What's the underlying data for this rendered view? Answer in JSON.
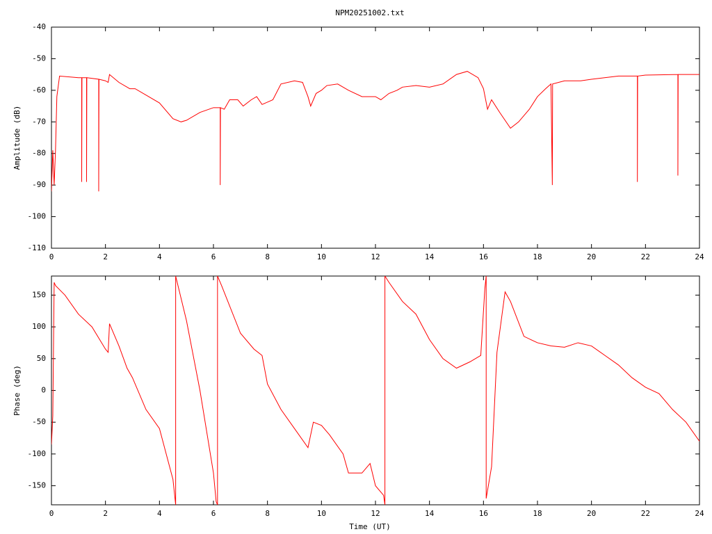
{
  "chart_data": [
    {
      "type": "line",
      "title": "NPM20251002.txt",
      "y_label": "Amplitude (dB)",
      "color": "#ff0000",
      "xlim": [
        0,
        24
      ],
      "xticks": [
        0,
        2,
        4,
        6,
        8,
        10,
        12,
        14,
        16,
        18,
        20,
        22,
        24
      ],
      "ylim": [
        -110,
        -40
      ],
      "yticks": [
        -110,
        -100,
        -90,
        -80,
        -70,
        -60,
        -50,
        -40
      ],
      "x": [
        0,
        0.05,
        0.1,
        0.15,
        0.2,
        0.3,
        1,
        1.12,
        1.12,
        1.13,
        1.3,
        1.3,
        1.31,
        1.75,
        1.75,
        1.76,
        2,
        2.1,
        2.15,
        2.5,
        2.9,
        3.1,
        3.5,
        4,
        4.5,
        4.8,
        5,
        5.5,
        6,
        6.25,
        6.25,
        6.26,
        6.4,
        6.6,
        6.9,
        7.1,
        7.4,
        7.6,
        7.8,
        8.2,
        8.5,
        9,
        9.3,
        9.5,
        9.6,
        9.8,
        10,
        10.2,
        10.6,
        11,
        11.5,
        12,
        12.2,
        12.5,
        12.8,
        13,
        13.5,
        14,
        14.5,
        15,
        15.4,
        15.8,
        16,
        16.15,
        16.3,
        16.6,
        17,
        17.3,
        17.7,
        18,
        18.3,
        18.5,
        18.55,
        18.56,
        19,
        19.6,
        20,
        21,
        21.7,
        21.7,
        21.71,
        22,
        23.2,
        23.2,
        23.21,
        24
      ],
      "values": [
        -92,
        -79,
        -90,
        -79,
        -62,
        -55.5,
        -56,
        -56,
        -89,
        -56,
        -56,
        -89,
        -56,
        -56.5,
        -92,
        -56.5,
        -57,
        -57.5,
        -55,
        -57.5,
        -59.5,
        -59.5,
        -61.5,
        -64,
        -69,
        -70,
        -69.5,
        -67,
        -65.5,
        -65.5,
        -90,
        -65.5,
        -66,
        -63,
        -63,
        -65,
        -63,
        -62,
        -64.5,
        -63,
        -58,
        -57,
        -57.5,
        -62,
        -65,
        -61,
        -60,
        -58.5,
        -58,
        -60,
        -62,
        -62,
        -63,
        -61,
        -60,
        -59,
        -58.5,
        -59,
        -58,
        -55,
        -54,
        -56,
        -59.5,
        -66,
        -63,
        -67,
        -72,
        -70,
        -66,
        -62,
        -59.5,
        -58,
        -90,
        -58,
        -57,
        -57,
        -56.5,
        -55.5,
        -55.5,
        -89,
        -55.5,
        -55.2,
        -55,
        -87,
        -55,
        -55
      ]
    },
    {
      "type": "line",
      "x_label": "Time (UT)",
      "y_label": "Phase (deg)",
      "color": "#ff0000",
      "xlim": [
        0,
        24
      ],
      "xticks": [
        0,
        2,
        4,
        6,
        8,
        10,
        12,
        14,
        16,
        18,
        20,
        22,
        24
      ],
      "ylim": [
        -180,
        180
      ],
      "yticks": [
        -150,
        -100,
        -50,
        0,
        50,
        100,
        150
      ],
      "x": [
        0,
        0.05,
        0.1,
        0.15,
        0.5,
        1,
        1.5,
        2,
        2.1,
        2.15,
        2.5,
        2.8,
        3,
        3.5,
        4,
        4.5,
        4.6,
        4.6,
        5,
        5.5,
        6,
        6.1,
        6.15,
        6.15,
        6.3,
        7,
        7.5,
        7.8,
        8,
        8.5,
        9,
        9.5,
        9.7,
        10,
        10.3,
        10.8,
        11,
        11.5,
        11.8,
        12,
        12.3,
        12.35,
        12.35,
        12.5,
        13,
        13.5,
        14,
        14.5,
        15,
        15.5,
        15.9,
        16.05,
        16.1,
        16.1,
        16.3,
        16.5,
        16.8,
        17,
        17.5,
        18,
        18.5,
        19,
        19.5,
        20,
        20.5,
        21,
        21.5,
        22,
        22.5,
        23,
        23.5,
        24
      ],
      "values": [
        -85,
        -40,
        170,
        165,
        150,
        120,
        100,
        65,
        60,
        105,
        70,
        35,
        20,
        -30,
        -60,
        -140,
        -180,
        180,
        110,
        0,
        -130,
        -175,
        -180,
        180,
        165,
        90,
        65,
        55,
        10,
        -30,
        -60,
        -90,
        -50,
        -55,
        -70,
        -100,
        -130,
        -130,
        -115,
        -150,
        -165,
        -180,
        180,
        170,
        140,
        120,
        80,
        50,
        35,
        45,
        55,
        160,
        180,
        -170,
        -120,
        60,
        155,
        140,
        85,
        75,
        70,
        68,
        75,
        70,
        55,
        40,
        20,
        5,
        -5,
        -30,
        -50,
        -80
      ]
    }
  ]
}
